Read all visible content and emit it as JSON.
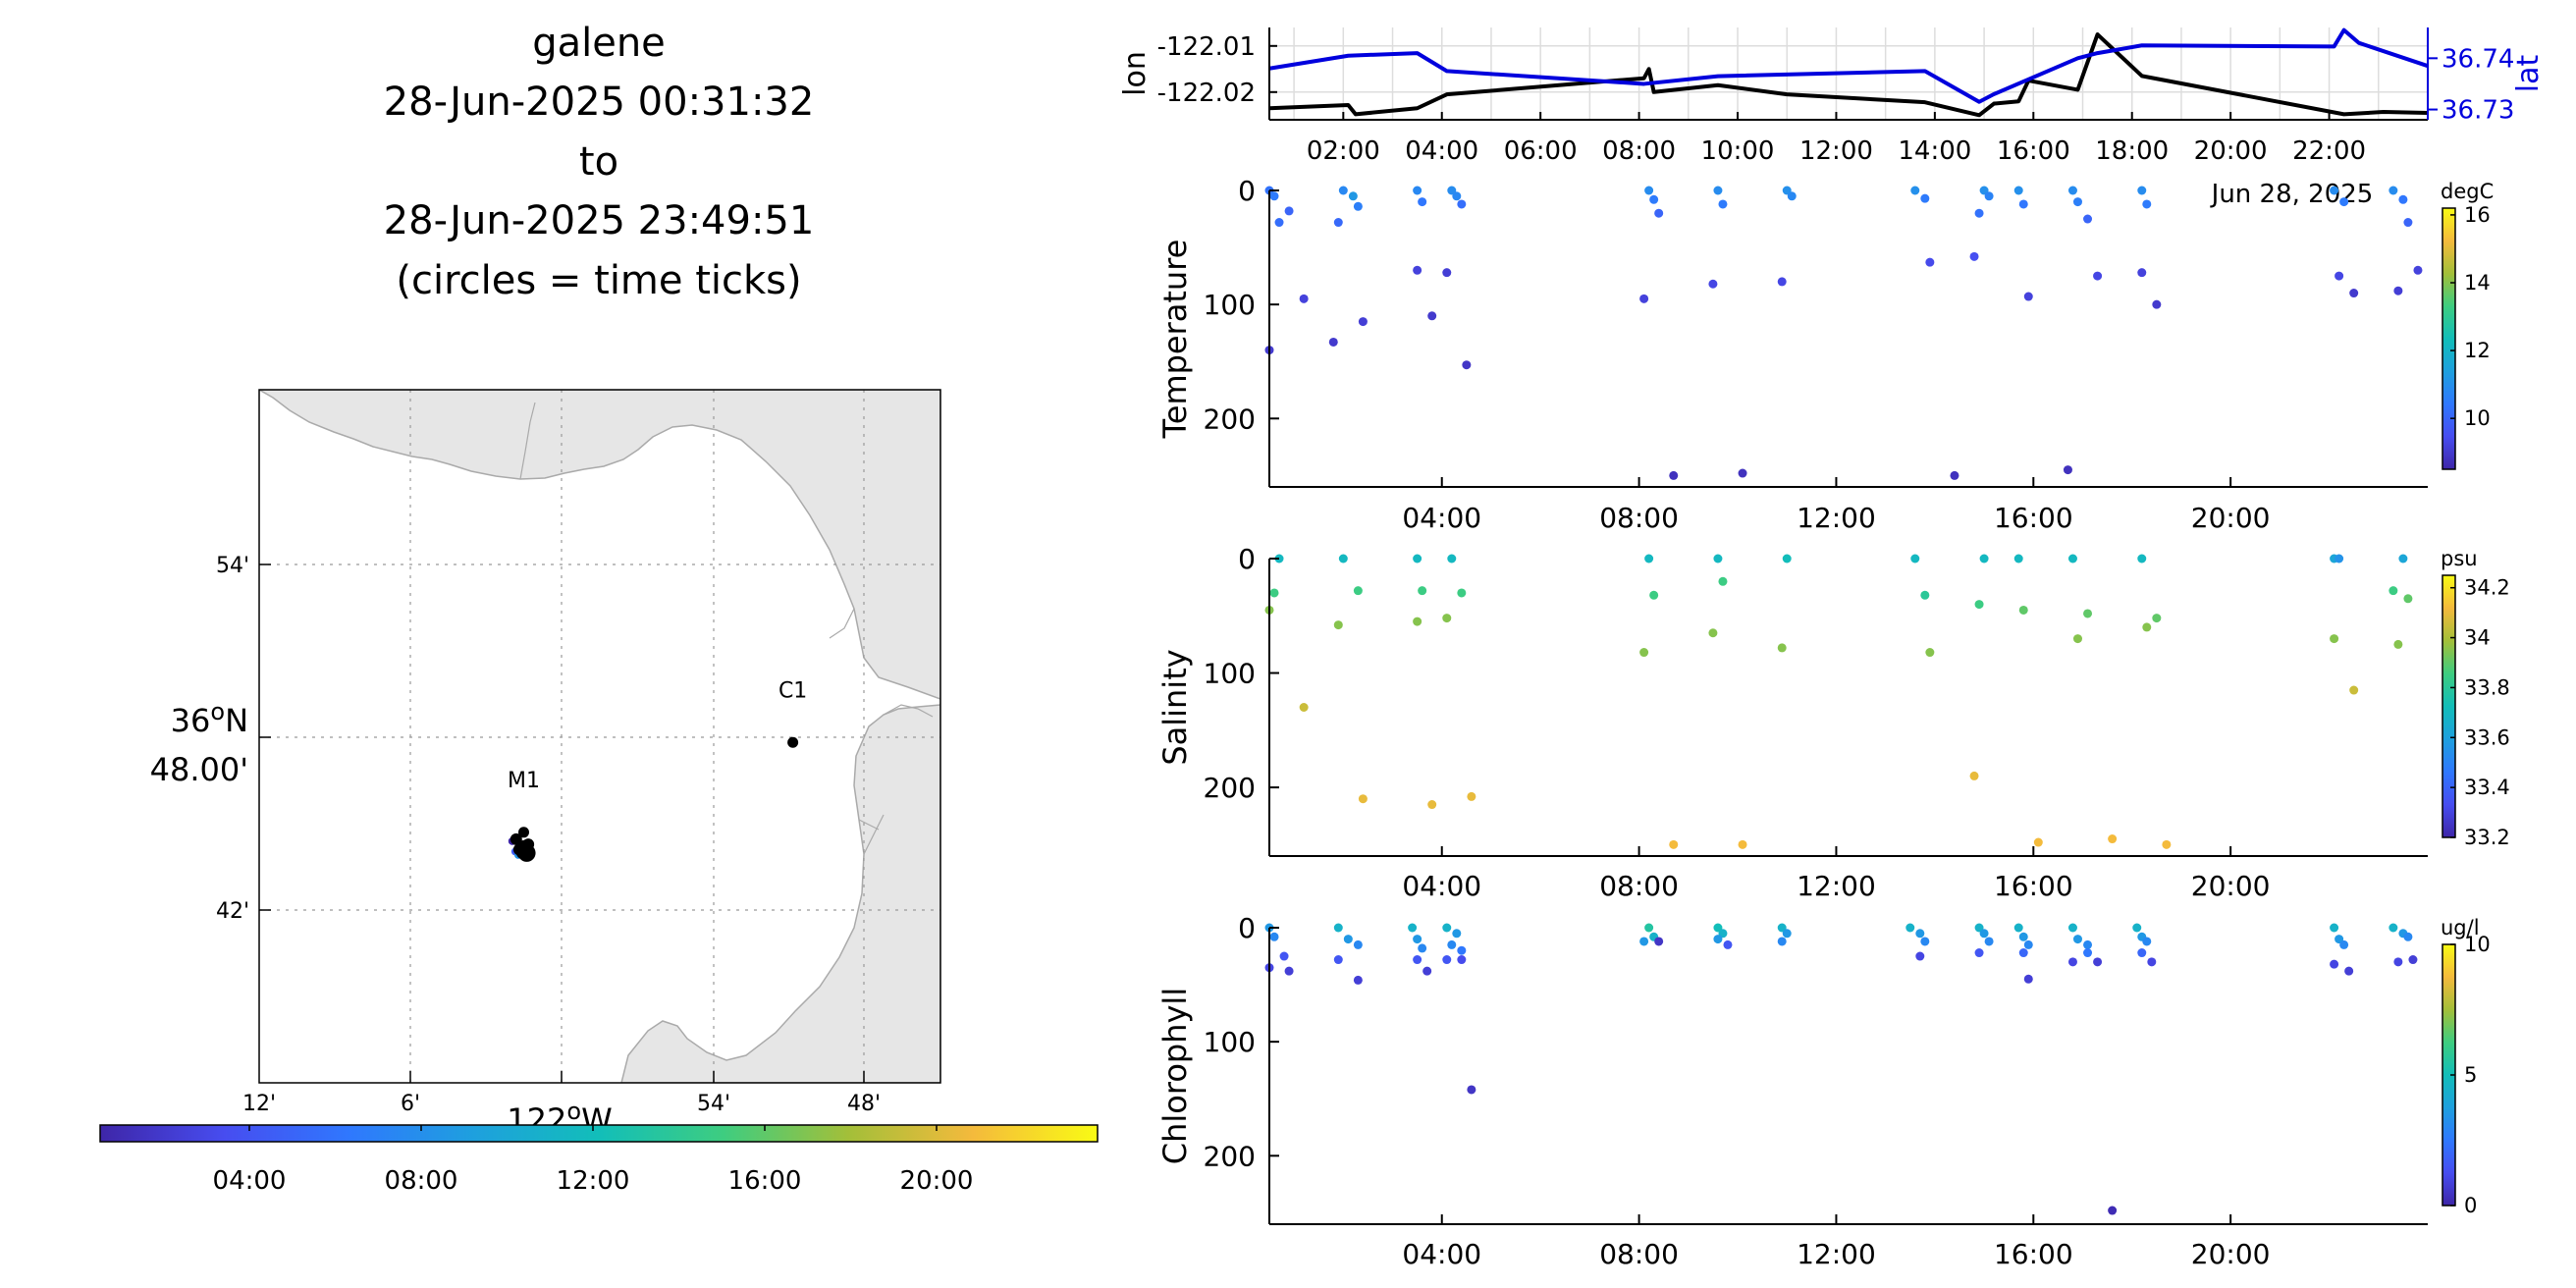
{
  "title": {
    "lines": [
      "galene",
      "28-Jun-2025 00:31:32",
      "to",
      "28-Jun-2025 23:49:51",
      "(circles = time ticks)"
    ]
  },
  "map": {
    "lat_tick_labels": [
      "54'",
      "48.00'",
      "42'"
    ],
    "lat_degree_label": "36",
    "lat_degree_suffix": "N",
    "lon_tick_labels": [
      "12'",
      "6'",
      "54'",
      "48'"
    ],
    "lon_degree_label": "122",
    "lon_degree_suffix": "W",
    "stations": [
      {
        "name": "M1",
        "lon": -122.025,
        "lat": 36.745
      },
      {
        "name": "C1",
        "lon": -121.847,
        "lat": 36.797
      }
    ],
    "land_color": "#e6e6e6",
    "coast_color": "#aaaaaa",
    "track": {
      "color": "#000000",
      "lons": [
        -122.03,
        -122.028,
        -122.026,
        -122.024,
        -122.022,
        -122.025,
        -122.023
      ],
      "lats": [
        36.741,
        36.735,
        36.733,
        36.736,
        36.738,
        36.737,
        36.733
      ]
    }
  },
  "time_colorbar": {
    "tick_labels": [
      "04:00",
      "08:00",
      "12:00",
      "16:00",
      "20:00"
    ]
  },
  "chart_data": [
    {
      "type": "line",
      "id": "lon-lat",
      "xlabel": "",
      "ylabel": "lon",
      "y2label": "lat",
      "x_tick_labels": [
        "02:00",
        "04:00",
        "06:00",
        "08:00",
        "10:00",
        "12:00",
        "14:00",
        "16:00",
        "18:00",
        "20:00",
        "22:00"
      ],
      "x_date_label": "Jun 28, 2025",
      "xlim": [
        0.5,
        24.0
      ],
      "ylim": [
        -122.026,
        -122.006
      ],
      "y_ticks": [
        -122.01,
        -122.02
      ],
      "y_tick_labels": [
        "-122.01",
        "-122.02"
      ],
      "y2lim": [
        36.728,
        36.746
      ],
      "y2_ticks": [
        36.74,
        36.73
      ],
      "y2_tick_labels": [
        "36.74",
        "36.73"
      ],
      "grid": true,
      "series": [
        {
          "axis": "left",
          "color": "#000000",
          "x": [
            0.5,
            2.1,
            2.25,
            3.5,
            4.1,
            8.1,
            8.2,
            8.3,
            9.6,
            11.0,
            13.8,
            14.9,
            15.2,
            15.7,
            15.9,
            16.9,
            17.3,
            18.2,
            22.3,
            23.1,
            24.0
          ],
          "y": [
            -122.0235,
            -122.0228,
            -122.0248,
            -122.0235,
            -122.0205,
            -122.017,
            -122.015,
            -122.02,
            -122.0185,
            -122.0205,
            -122.0222,
            -122.025,
            -122.0225,
            -122.022,
            -122.0175,
            -122.0195,
            -122.0075,
            -122.0165,
            -122.0248,
            -122.0243,
            -122.0245
          ]
        },
        {
          "axis": "right",
          "color": "#0000dd",
          "x": [
            0.5,
            2.1,
            3.5,
            4.1,
            8.1,
            9.6,
            13.8,
            14.9,
            15.2,
            16.9,
            17.3,
            18.2,
            22.1,
            22.3,
            22.6,
            24.0
          ],
          "y": [
            36.738,
            36.7405,
            36.741,
            36.7375,
            36.735,
            36.7365,
            36.7375,
            36.7315,
            36.733,
            36.74,
            36.741,
            36.7425,
            36.7423,
            36.7455,
            36.743,
            36.7385
          ]
        }
      ]
    },
    {
      "type": "scatter",
      "id": "temperature",
      "ylabel": "Temperature",
      "colorbar_unit": "degC",
      "colorbar_ticks": [
        16,
        14,
        12,
        10
      ],
      "clim": [
        8.5,
        16.2
      ],
      "x_tick_labels": [
        "04:00",
        "08:00",
        "12:00",
        "16:00",
        "20:00"
      ],
      "y_tick_labels": [
        "0",
        "100",
        "200"
      ],
      "ylim": [
        0,
        260
      ],
      "points": [
        [
          0.5,
          0,
          10.3
        ],
        [
          0.6,
          5,
          10.5
        ],
        [
          0.7,
          28,
          10.2
        ],
        [
          0.9,
          18,
          10.0
        ],
        [
          0.5,
          140,
          9.0
        ],
        [
          1.2,
          95,
          9.2
        ],
        [
          2.0,
          0,
          10.8
        ],
        [
          2.2,
          5,
          11.2
        ],
        [
          2.3,
          14,
          10.6
        ],
        [
          1.9,
          28,
          10.1
        ],
        [
          2.4,
          115,
          9.1
        ],
        [
          1.8,
          133,
          9.0
        ],
        [
          3.5,
          0,
          10.8
        ],
        [
          3.6,
          10,
          10.4
        ],
        [
          3.5,
          70,
          9.2
        ],
        [
          3.8,
          110,
          9.0
        ],
        [
          4.2,
          0,
          10.9
        ],
        [
          4.3,
          5,
          10.8
        ],
        [
          4.4,
          12,
          10.2
        ],
        [
          4.1,
          72,
          9.1
        ],
        [
          4.5,
          153,
          8.9
        ],
        [
          8.2,
          0,
          10.9
        ],
        [
          8.3,
          8,
          10.5
        ],
        [
          8.4,
          20,
          10.0
        ],
        [
          8.1,
          95,
          9.2
        ],
        [
          8.7,
          250,
          8.8
        ],
        [
          9.6,
          0,
          10.9
        ],
        [
          9.7,
          12,
          10.5
        ],
        [
          9.5,
          82,
          9.3
        ],
        [
          10.1,
          248,
          8.8
        ],
        [
          11.0,
          0,
          11.0
        ],
        [
          11.1,
          5,
          10.8
        ],
        [
          10.9,
          80,
          9.3
        ],
        [
          13.6,
          0,
          11.0
        ],
        [
          13.8,
          7,
          10.5
        ],
        [
          13.9,
          63,
          9.4
        ],
        [
          14.4,
          250,
          8.8
        ],
        [
          15.0,
          0,
          11.0
        ],
        [
          15.1,
          5,
          10.7
        ],
        [
          14.9,
          20,
          10.3
        ],
        [
          14.8,
          58,
          9.5
        ],
        [
          15.7,
          0,
          11.0
        ],
        [
          15.8,
          12,
          10.4
        ],
        [
          15.9,
          93,
          9.2
        ],
        [
          16.8,
          0,
          10.9
        ],
        [
          16.9,
          10,
          10.6
        ],
        [
          17.1,
          25,
          10.0
        ],
        [
          16.7,
          245,
          8.8
        ],
        [
          17.3,
          75,
          9.3
        ],
        [
          18.2,
          0,
          10.9
        ],
        [
          18.3,
          12,
          10.5
        ],
        [
          18.2,
          72,
          9.2
        ],
        [
          18.5,
          100,
          9.0
        ],
        [
          22.1,
          0,
          10.9
        ],
        [
          22.3,
          10,
          10.5
        ],
        [
          22.2,
          75,
          9.3
        ],
        [
          22.5,
          90,
          9.0
        ],
        [
          23.3,
          0,
          10.9
        ],
        [
          23.5,
          8,
          10.4
        ],
        [
          23.6,
          28,
          10.0
        ],
        [
          23.4,
          88,
          9.1
        ],
        [
          23.8,
          70,
          9.2
        ]
      ]
    },
    {
      "type": "scatter",
      "id": "salinity",
      "ylabel": "Salinity",
      "colorbar_unit": "psu",
      "colorbar_ticks": [
        34.2,
        34,
        33.8,
        33.6,
        33.4,
        33.2
      ],
      "colorbar_tick_labels": [
        "34.2",
        "34",
        "33.8",
        "33.6",
        "33.4",
        "33.2"
      ],
      "clim": [
        33.2,
        34.25
      ],
      "x_tick_labels": [
        "04:00",
        "08:00",
        "12:00",
        "16:00",
        "20:00"
      ],
      "y_tick_labels": [
        "0",
        "100",
        "200"
      ],
      "ylim": [
        0,
        260
      ],
      "points": [
        [
          0.7,
          0,
          33.7
        ],
        [
          0.6,
          30,
          33.85
        ],
        [
          0.5,
          45,
          33.95
        ],
        [
          1.2,
          130,
          34.05
        ],
        [
          2.0,
          0,
          33.7
        ],
        [
          2.3,
          28,
          33.85
        ],
        [
          1.9,
          58,
          33.95
        ],
        [
          2.4,
          210,
          34.1
        ],
        [
          3.5,
          0,
          33.7
        ],
        [
          3.6,
          28,
          33.85
        ],
        [
          3.5,
          55,
          33.95
        ],
        [
          3.8,
          215,
          34.1
        ],
        [
          4.2,
          0,
          33.7
        ],
        [
          4.4,
          30,
          33.85
        ],
        [
          4.1,
          52,
          33.95
        ],
        [
          4.6,
          208,
          34.1
        ],
        [
          8.2,
          0,
          33.7
        ],
        [
          8.3,
          32,
          33.85
        ],
        [
          8.1,
          82,
          33.95
        ],
        [
          8.7,
          250,
          34.12
        ],
        [
          9.6,
          0,
          33.7
        ],
        [
          9.7,
          20,
          33.85
        ],
        [
          9.5,
          65,
          33.95
        ],
        [
          10.1,
          250,
          34.12
        ],
        [
          11.0,
          0,
          33.72
        ],
        [
          10.9,
          78,
          33.95
        ],
        [
          13.6,
          0,
          33.7
        ],
        [
          13.8,
          32,
          33.8
        ],
        [
          13.9,
          82,
          33.95
        ],
        [
          14.8,
          190,
          34.1
        ],
        [
          15.0,
          0,
          33.7
        ],
        [
          14.9,
          40,
          33.85
        ],
        [
          15.7,
          0,
          33.7
        ],
        [
          15.8,
          45,
          33.9
        ],
        [
          16.1,
          248,
          34.12
        ],
        [
          16.8,
          0,
          33.7
        ],
        [
          16.9,
          70,
          33.95
        ],
        [
          17.1,
          48,
          33.9
        ],
        [
          17.6,
          245,
          34.12
        ],
        [
          18.2,
          0,
          33.7
        ],
        [
          18.3,
          60,
          33.95
        ],
        [
          18.5,
          52,
          33.9
        ],
        [
          18.7,
          250,
          34.12
        ],
        [
          22.1,
          0,
          33.62
        ],
        [
          22.2,
          0,
          33.55
        ],
        [
          22.1,
          70,
          33.95
        ],
        [
          22.5,
          115,
          34.05
        ],
        [
          23.3,
          28,
          33.85
        ],
        [
          23.5,
          0,
          33.62
        ],
        [
          23.6,
          35,
          33.9
        ],
        [
          23.4,
          75,
          33.95
        ]
      ]
    },
    {
      "type": "scatter",
      "id": "chlorophyll",
      "ylabel": "Chlorophyll",
      "colorbar_unit": "ug/l",
      "colorbar_ticks": [
        10,
        5,
        0
      ],
      "clim": [
        0,
        10
      ],
      "x_tick_labels": [
        "04:00",
        "08:00",
        "12:00",
        "16:00",
        "20:00"
      ],
      "y_tick_labels": [
        "0",
        "100",
        "200"
      ],
      "ylim": [
        0,
        260
      ],
      "points": [
        [
          0.5,
          0,
          3.5
        ],
        [
          0.6,
          8,
          3.0
        ],
        [
          0.8,
          25,
          1.5
        ],
        [
          0.5,
          35,
          1.0
        ],
        [
          0.9,
          38,
          0.8
        ],
        [
          1.9,
          0,
          4.5
        ],
        [
          2.1,
          10,
          3.5
        ],
        [
          2.3,
          15,
          3.0
        ],
        [
          1.9,
          28,
          1.5
        ],
        [
          2.3,
          46,
          0.8
        ],
        [
          3.4,
          0,
          4.5
        ],
        [
          3.5,
          10,
          3.5
        ],
        [
          3.6,
          18,
          3.0
        ],
        [
          3.5,
          28,
          1.5
        ],
        [
          3.7,
          38,
          0.8
        ],
        [
          4.1,
          0,
          4.5
        ],
        [
          4.3,
          5,
          3.5
        ],
        [
          4.2,
          15,
          3.0
        ],
        [
          4.4,
          20,
          2.5
        ],
        [
          4.1,
          28,
          1.5
        ],
        [
          4.4,
          28,
          1.2
        ],
        [
          4.6,
          142,
          0.5
        ],
        [
          8.2,
          0,
          5.5
        ],
        [
          8.3,
          8,
          4.5
        ],
        [
          8.1,
          12,
          3.5
        ],
        [
          8.4,
          12,
          0.5
        ],
        [
          9.6,
          0,
          5.0
        ],
        [
          9.7,
          5,
          4.5
        ],
        [
          9.6,
          10,
          3.5
        ],
        [
          9.8,
          15,
          1.5
        ],
        [
          10.9,
          0,
          4.5
        ],
        [
          11.0,
          5,
          3.5
        ],
        [
          10.9,
          12,
          3.0
        ],
        [
          13.5,
          0,
          4.5
        ],
        [
          13.7,
          5,
          3.5
        ],
        [
          13.8,
          12,
          3.0
        ],
        [
          13.7,
          25,
          1.0
        ],
        [
          14.9,
          0,
          4.5
        ],
        [
          15.0,
          5,
          3.5
        ],
        [
          15.1,
          12,
          3.0
        ],
        [
          14.9,
          22,
          1.5
        ],
        [
          15.7,
          0,
          4.5
        ],
        [
          15.8,
          8,
          3.5
        ],
        [
          15.9,
          15,
          3.0
        ],
        [
          15.8,
          22,
          2.0
        ],
        [
          15.9,
          45,
          0.8
        ],
        [
          16.8,
          0,
          4.5
        ],
        [
          16.9,
          10,
          3.5
        ],
        [
          17.1,
          15,
          3.0
        ],
        [
          17.1,
          22,
          2.5
        ],
        [
          16.8,
          30,
          1.0
        ],
        [
          17.3,
          30,
          0.8
        ],
        [
          17.6,
          248,
          0.2
        ],
        [
          18.1,
          0,
          4.5
        ],
        [
          18.2,
          8,
          3.5
        ],
        [
          18.3,
          12,
          3.0
        ],
        [
          18.2,
          22,
          2.0
        ],
        [
          18.4,
          30,
          1.0
        ],
        [
          22.1,
          0,
          4.5
        ],
        [
          22.2,
          10,
          3.5
        ],
        [
          22.3,
          15,
          3.0
        ],
        [
          22.1,
          32,
          1.0
        ],
        [
          22.4,
          38,
          0.8
        ],
        [
          23.3,
          0,
          4.5
        ],
        [
          23.5,
          5,
          3.5
        ],
        [
          23.6,
          8,
          3.0
        ],
        [
          23.4,
          30,
          1.0
        ],
        [
          23.7,
          28,
          0.8
        ]
      ]
    }
  ]
}
